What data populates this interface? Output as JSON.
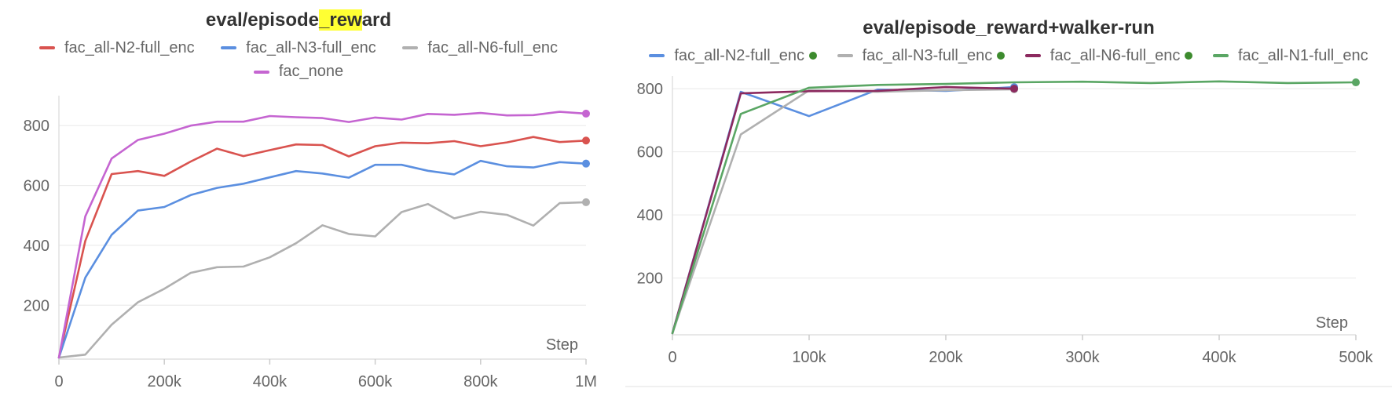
{
  "chart_data": [
    {
      "type": "line",
      "title_prefix": "eval/episode",
      "title_highlight": "_rew",
      "title_suffix": "ard",
      "xlabel": "Step",
      "ylabel": "",
      "xlim": [
        0,
        1000000
      ],
      "ylim": [
        20,
        900
      ],
      "xticks": [
        0,
        200000,
        400000,
        600000,
        800000,
        1000000
      ],
      "xtick_labels": [
        "0",
        "200k",
        "400k",
        "600k",
        "800k",
        "1M"
      ],
      "yticks": [
        200,
        400,
        600,
        800
      ],
      "ytick_labels": [
        "200",
        "400",
        "600",
        "800"
      ],
      "grid": true,
      "legend_position": "top",
      "x": [
        0,
        50000,
        100000,
        150000,
        200000,
        250000,
        300000,
        350000,
        400000,
        450000,
        500000,
        550000,
        600000,
        650000,
        700000,
        750000,
        800000,
        850000,
        900000,
        950000,
        1000000
      ],
      "series": [
        {
          "name": "fac_all-N2-full_enc",
          "color": "#d9534f",
          "values": [
            25,
            415,
            638,
            648,
            632,
            680,
            723,
            698,
            718,
            737,
            735,
            697,
            731,
            743,
            741,
            748,
            731,
            744,
            762,
            745,
            750
          ]
        },
        {
          "name": "fac_all-N3-full_enc",
          "color": "#5b8fe0",
          "values": [
            25,
            292,
            435,
            516,
            528,
            568,
            592,
            606,
            627,
            648,
            640,
            626,
            669,
            669,
            649,
            637,
            682,
            664,
            660,
            678,
            673
          ]
        },
        {
          "name": "fac_all-N6-full_enc",
          "color": "#b0b0b0",
          "values": [
            25,
            35,
            135,
            210,
            255,
            308,
            327,
            329,
            360,
            407,
            467,
            438,
            430,
            511,
            538,
            490,
            512,
            502,
            466,
            541,
            544
          ]
        },
        {
          "name": "fac_none",
          "color": "#c565d1",
          "values": [
            25,
            497,
            690,
            752,
            773,
            800,
            813,
            813,
            832,
            828,
            825,
            812,
            827,
            820,
            839,
            836,
            842,
            834,
            835,
            846,
            840
          ]
        }
      ]
    },
    {
      "type": "line",
      "title": "eval/episode_reward+walker-run",
      "xlabel": "Step",
      "ylabel": "",
      "xlim": [
        0,
        500000
      ],
      "ylim": [
        20,
        840
      ],
      "xticks": [
        0,
        100000,
        200000,
        300000,
        400000,
        500000
      ],
      "xtick_labels": [
        "0",
        "100k",
        "200k",
        "300k",
        "400k",
        "500k"
      ],
      "yticks": [
        200,
        400,
        600,
        800
      ],
      "ytick_labels": [
        "200",
        "400",
        "600",
        "800"
      ],
      "grid": true,
      "legend_position": "top",
      "series": [
        {
          "name": "fac_all-N2-full_enc",
          "color": "#5b8fe0",
          "x": [
            0,
            50000,
            100000,
            150000,
            200000,
            250000
          ],
          "values": [
            25,
            790,
            713,
            797,
            793,
            805
          ]
        },
        {
          "name": "fac_all-N3-full_enc",
          "color": "#b0b0b0",
          "x": [
            0,
            50000,
            100000,
            150000,
            200000,
            250000
          ],
          "values": [
            25,
            655,
            795,
            790,
            795,
            798
          ]
        },
        {
          "name": "fac_all-N6-full_enc",
          "color": "#8c2a5f",
          "x": [
            0,
            50000,
            100000,
            150000,
            200000,
            250000
          ],
          "values": [
            25,
            785,
            792,
            793,
            805,
            800
          ]
        },
        {
          "name": "fac_all-N1-full_enc",
          "color": "#5aa664",
          "x": [
            0,
            50000,
            100000,
            150000,
            200000,
            250000,
            300000,
            350000,
            400000,
            450000,
            500000
          ],
          "values": [
            25,
            720,
            803,
            812,
            815,
            820,
            822,
            818,
            823,
            818,
            820
          ]
        }
      ]
    }
  ]
}
